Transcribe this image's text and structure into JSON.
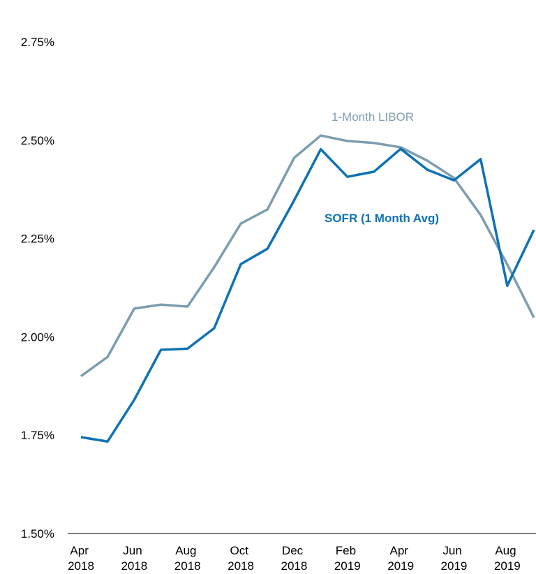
{
  "chart_data": {
    "type": "line",
    "categories": [
      "Apr 2018",
      null,
      "Jun 2018",
      null,
      "Aug 2018",
      null,
      "Oct 2018",
      null,
      "Dec 2018",
      null,
      "Feb 2019",
      null,
      "Apr 2019",
      null,
      "Jun 2019",
      null,
      "Aug 2019",
      null
    ],
    "series": [
      {
        "name": "1-Month LIBOR",
        "color": "#7c9db0",
        "values": [
          1.9,
          1.949,
          2.072,
          2.082,
          2.077,
          2.177,
          2.288,
          2.324,
          2.455,
          2.512,
          2.498,
          2.493,
          2.482,
          2.448,
          2.404,
          2.31,
          2.184,
          2.049
        ]
      },
      {
        "name": "SOFR (1 Month Avg)",
        "color": "#0e72b5",
        "values": [
          1.745,
          1.734,
          1.84,
          1.967,
          1.97,
          2.022,
          2.185,
          2.224,
          2.347,
          2.477,
          2.407,
          2.42,
          2.478,
          2.425,
          2.398,
          2.452,
          2.13,
          2.272
        ]
      }
    ],
    "ylim": [
      1.5,
      2.75
    ],
    "yticks": [
      {
        "value": 1.5,
        "label": "1.50%"
      },
      {
        "value": 1.75,
        "label": "1.75%"
      },
      {
        "value": 2.0,
        "label": "2.00%"
      },
      {
        "value": 2.25,
        "label": "2.25%"
      },
      {
        "value": 2.5,
        "label": "2.50%"
      },
      {
        "value": 2.75,
        "label": "2.75%"
      }
    ],
    "grid": false
  }
}
